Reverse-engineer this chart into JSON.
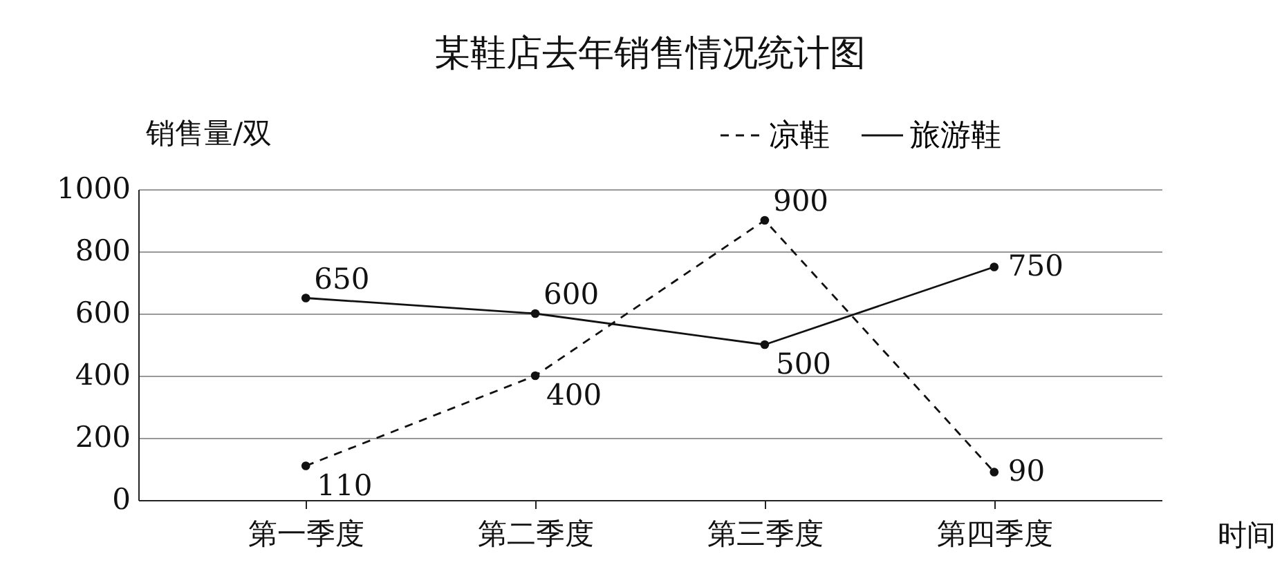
{
  "chart_data": {
    "type": "line",
    "title": "某鞋店去年销售情况统计图",
    "xlabel": "时间",
    "ylabel": "销售量/双",
    "categories": [
      "第一季度",
      "第二季度",
      "第三季度",
      "第四季度"
    ],
    "series": [
      {
        "name": "凉鞋",
        "color": "#111111",
        "line_style": "dashed",
        "values": [
          110,
          400,
          900,
          90
        ]
      },
      {
        "name": "旅游鞋",
        "color": "#111111",
        "line_style": "solid",
        "values": [
          650,
          600,
          500,
          750
        ]
      }
    ],
    "ylim": [
      0,
      1000
    ],
    "yticks": [
      0,
      200,
      400,
      600,
      800,
      {
        "value": 1000,
        "label": "1000"
      }
    ],
    "grid": "y",
    "legend": "top right",
    "marker": "circle",
    "data_labels": true
  }
}
